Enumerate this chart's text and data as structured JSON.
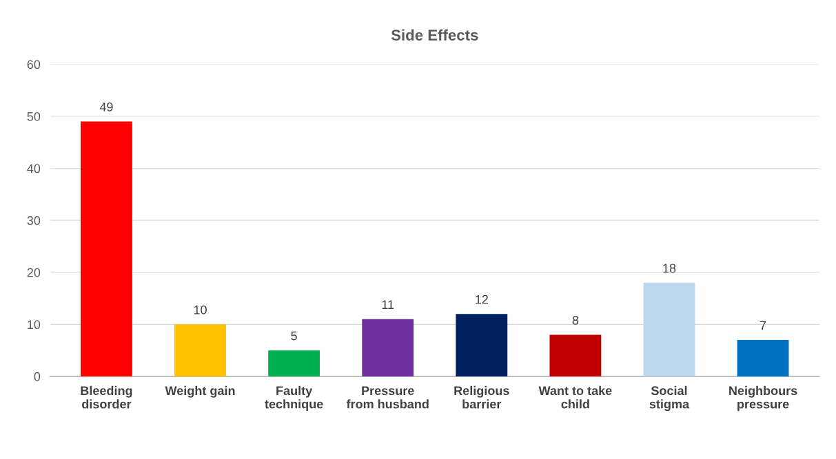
{
  "chart_data": {
    "type": "bar",
    "title": "Side Effects",
    "categories": [
      "Bleeding disorder",
      "Weight gain",
      "Faulty technique",
      "Pressure from husband",
      "Religious barrier",
      "Want to take child",
      "Social stigma",
      "Neighbours pressure"
    ],
    "values": [
      49,
      10,
      5,
      11,
      12,
      8,
      18,
      7
    ],
    "colors": [
      "#ff0000",
      "#ffc000",
      "#00b050",
      "#7030a0",
      "#002060",
      "#c00000",
      "#bdd7ee",
      "#0070c0"
    ],
    "ylim": [
      0,
      60
    ],
    "yticks": [
      0,
      10,
      20,
      30,
      40,
      50,
      60
    ],
    "grid": "y",
    "data_labels": true
  }
}
